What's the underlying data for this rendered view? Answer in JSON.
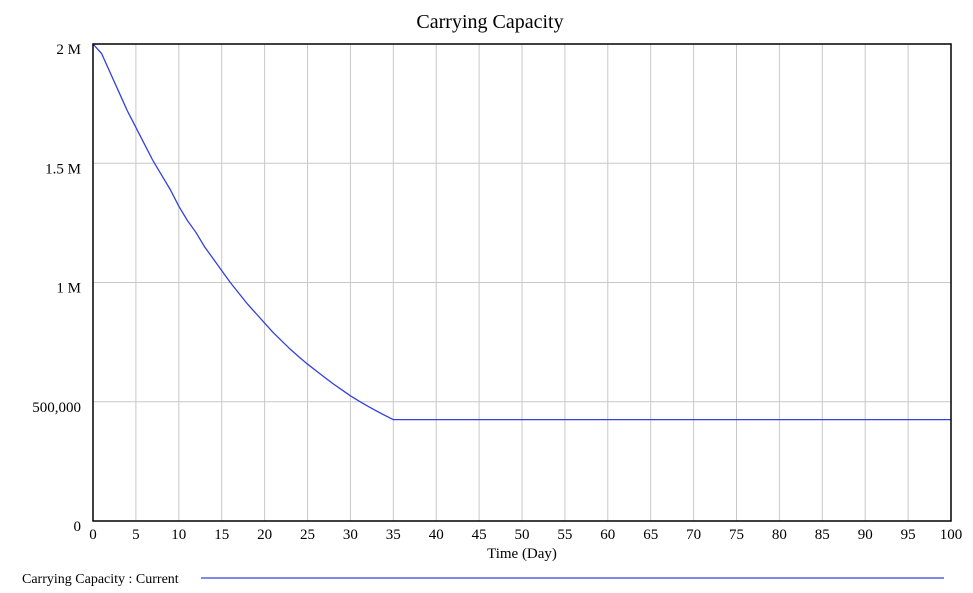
{
  "chart_data": {
    "type": "line",
    "title": "Carrying Capacity",
    "xlabel": "Time (Day)",
    "ylabel": "",
    "xlim": [
      0,
      100
    ],
    "ylim": [
      0,
      2000000
    ],
    "x_ticks": [
      0,
      5,
      10,
      15,
      20,
      25,
      30,
      35,
      40,
      45,
      50,
      55,
      60,
      65,
      70,
      75,
      80,
      85,
      90,
      95,
      100
    ],
    "x_tick_labels": [
      "0",
      "5",
      "10",
      "15",
      "20",
      "25",
      "30",
      "35",
      "40",
      "45",
      "50",
      "55",
      "60",
      "65",
      "70",
      "75",
      "80",
      "85",
      "90",
      "95",
      "100"
    ],
    "y_ticks": [
      0,
      500000,
      1000000,
      1500000,
      2000000
    ],
    "y_tick_labels": [
      "0",
      "500,000",
      "1 M",
      "1.5 M",
      "2 M"
    ],
    "grid": true,
    "legend_position": "bottom-left",
    "series": [
      {
        "name": "Carrying Capacity : Current",
        "color": "#3340e0",
        "x": [
          0,
          1,
          2,
          3,
          4,
          5,
          6,
          7,
          8,
          9,
          10,
          11,
          12,
          13,
          14,
          15,
          16,
          17,
          18,
          19,
          20,
          21,
          22,
          23,
          24,
          25,
          26,
          27,
          28,
          29,
          30,
          31,
          32,
          33,
          34,
          35,
          40,
          50,
          60,
          70,
          80,
          90,
          100
        ],
        "y": [
          2000000,
          1960000,
          1880000,
          1800000,
          1720000,
          1650000,
          1580000,
          1510000,
          1450000,
          1390000,
          1320000,
          1260000,
          1210000,
          1150000,
          1100000,
          1050000,
          1000000,
          955000,
          910000,
          870000,
          830000,
          790000,
          755000,
          720000,
          688000,
          658000,
          630000,
          602000,
          575000,
          550000,
          525000,
          503000,
          482000,
          462000,
          443000,
          425000,
          425000,
          425000,
          425000,
          425000,
          425000,
          425000,
          425000
        ]
      }
    ]
  }
}
